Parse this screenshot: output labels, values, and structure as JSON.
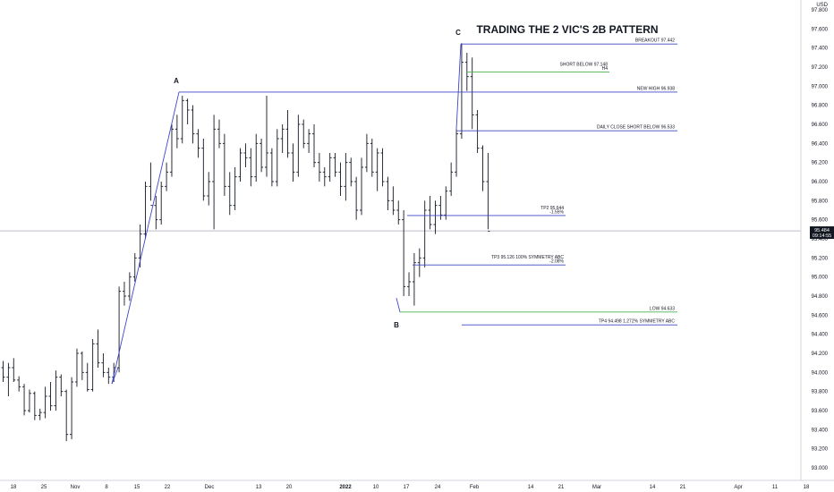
{
  "chart_data": {
    "type": "ohlc-bar",
    "title": "TRADING THE 2 VIC'S 2B PATTERN",
    "currency": "USD",
    "ylim": [
      93.0,
      97.8
    ],
    "y_ticks": [
      "93.000",
      "93.200",
      "93.400",
      "93.600",
      "93.800",
      "94.000",
      "94.200",
      "94.400",
      "94.600",
      "94.800",
      "95.000",
      "95.200",
      "95.400",
      "95.600",
      "95.800",
      "96.000",
      "96.200",
      "96.400",
      "96.600",
      "96.800",
      "97.000",
      "97.200",
      "97.400",
      "97.600",
      "97.800"
    ],
    "x_ticks": [
      "18",
      "25",
      "Nov",
      "8",
      "15",
      "22",
      "Dec",
      "13",
      "20",
      "2022",
      "10",
      "17",
      "24",
      "Feb",
      "14",
      "21",
      "Mar",
      "14",
      "21",
      "Apr",
      "11",
      "18"
    ],
    "current_price": {
      "value": 95.484,
      "label": "95.484",
      "time": "09:14:55"
    },
    "pattern_points": [
      {
        "label": "A",
        "value": 96.938
      },
      {
        "label": "B",
        "value": 94.633
      },
      {
        "label": "C",
        "value": 97.442
      }
    ],
    "levels": [
      {
        "name": "BREAKOUT",
        "text": "BREAKOUT 97.442",
        "sub": "",
        "value": 97.442,
        "color": "#3f46c8"
      },
      {
        "name": "SHORT BELOW",
        "text": "SHORT BELOW 97.148",
        "sub": "H4",
        "value": 97.148,
        "color": "#4caf50"
      },
      {
        "name": "NEW HIGH",
        "text": "NEW HIGH 96.938",
        "sub": "",
        "value": 96.938,
        "color": "#3f46c8"
      },
      {
        "name": "DAILY CLOSE SHORT BELOW",
        "text": "DAILY CLOSE SHORT BELOW  96.533",
        "sub": "",
        "value": 96.533,
        "color": "#3f46c8"
      },
      {
        "name": "TP2",
        "text": "TP2 95.644",
        "sub": "-1.55%",
        "value": 95.644,
        "color": "#3f46c8"
      },
      {
        "name": "TP3",
        "text": "TP3  95.126 100% SYMMETRY ABC",
        "sub": "-2.08%",
        "value": 95.126,
        "color": "#3f46c8"
      },
      {
        "name": "LOW",
        "text": "LOW  94.633",
        "sub": "",
        "value": 94.633,
        "color": "#4caf50"
      },
      {
        "name": "TP4",
        "text": "TP4  94.498 1.272% SYMMETRY ABC",
        "sub": "",
        "value": 94.498,
        "color": "#3f46c8"
      }
    ],
    "bars": [
      [
        94.05,
        94.12,
        93.9,
        93.95
      ],
      [
        93.95,
        94.1,
        93.75,
        94.05
      ],
      [
        94.05,
        94.15,
        93.9,
        93.92
      ],
      [
        93.92,
        93.96,
        93.8,
        93.85
      ],
      [
        93.85,
        93.88,
        93.55,
        93.6
      ],
      [
        93.6,
        93.82,
        93.58,
        93.78
      ],
      [
        93.78,
        93.8,
        93.5,
        93.55
      ],
      [
        93.55,
        93.62,
        93.5,
        93.58
      ],
      [
        93.58,
        93.85,
        93.52,
        93.75
      ],
      [
        93.75,
        93.9,
        93.6,
        93.65
      ],
      [
        93.65,
        94.02,
        93.6,
        93.95
      ],
      [
        93.95,
        93.98,
        93.75,
        93.8
      ],
      [
        93.8,
        93.82,
        93.28,
        93.35
      ],
      [
        93.35,
        93.95,
        93.3,
        93.9
      ],
      [
        93.9,
        94.25,
        93.85,
        94.2
      ],
      [
        94.2,
        94.22,
        93.92,
        94.0
      ],
      [
        94.0,
        94.1,
        93.8,
        93.82
      ],
      [
        93.82,
        94.35,
        93.8,
        94.3
      ],
      [
        94.3,
        94.45,
        94.05,
        94.1
      ],
      [
        94.1,
        94.2,
        93.95,
        94.0
      ],
      [
        94.0,
        94.05,
        93.88,
        93.95
      ],
      [
        93.95,
        94.1,
        93.9,
        94.05
      ],
      [
        94.05,
        94.9,
        94.0,
        94.85
      ],
      [
        94.85,
        94.95,
        94.7,
        94.8
      ],
      [
        94.8,
        95.05,
        94.75,
        95.0
      ],
      [
        95.0,
        95.25,
        94.95,
        95.2
      ],
      [
        95.2,
        95.55,
        95.1,
        95.45
      ],
      [
        95.45,
        96.0,
        95.4,
        95.95
      ],
      [
        95.95,
        96.2,
        95.8,
        95.75
      ],
      [
        95.75,
        95.85,
        95.5,
        95.6
      ],
      [
        95.6,
        96.0,
        95.55,
        95.95
      ],
      [
        95.95,
        96.2,
        95.9,
        96.1
      ],
      [
        96.1,
        96.6,
        96.05,
        96.55
      ],
      [
        96.55,
        96.7,
        96.35,
        96.45
      ],
      [
        96.45,
        96.9,
        96.4,
        96.85
      ],
      [
        96.85,
        96.87,
        96.6,
        96.75
      ],
      [
        96.75,
        96.8,
        96.4,
        96.5
      ],
      [
        96.5,
        96.55,
        96.25,
        96.35
      ],
      [
        96.35,
        96.45,
        95.8,
        95.85
      ],
      [
        95.85,
        96.1,
        95.75,
        96.0
      ],
      [
        96.0,
        96.7,
        95.5,
        96.55
      ],
      [
        96.55,
        96.65,
        96.35,
        96.4
      ],
      [
        96.4,
        96.5,
        95.85,
        95.95
      ],
      [
        95.95,
        96.1,
        95.65,
        95.75
      ],
      [
        95.75,
        96.15,
        95.7,
        96.05
      ],
      [
        96.05,
        96.35,
        96.0,
        96.3
      ],
      [
        96.3,
        96.4,
        96.15,
        96.25
      ],
      [
        96.25,
        96.35,
        95.95,
        96.05
      ],
      [
        96.05,
        96.5,
        96.0,
        96.4
      ],
      [
        96.4,
        96.45,
        96.1,
        96.15
      ],
      [
        96.15,
        96.9,
        96.05,
        96.3
      ],
      [
        96.3,
        96.35,
        95.95,
        96.0
      ],
      [
        96.0,
        96.55,
        95.95,
        96.45
      ],
      [
        96.45,
        96.6,
        96.3,
        96.55
      ],
      [
        96.55,
        96.75,
        96.25,
        96.3
      ],
      [
        96.3,
        96.4,
        96.0,
        96.1
      ],
      [
        96.1,
        96.7,
        96.05,
        96.6
      ],
      [
        96.6,
        96.65,
        96.35,
        96.4
      ],
      [
        96.4,
        96.55,
        96.3,
        96.5
      ],
      [
        96.5,
        96.6,
        96.15,
        96.2
      ],
      [
        96.2,
        96.3,
        96.0,
        96.1
      ],
      [
        96.1,
        96.15,
        95.95,
        96.05
      ],
      [
        96.05,
        96.3,
        96.0,
        96.25
      ],
      [
        96.25,
        96.3,
        96.05,
        96.1
      ],
      [
        96.1,
        96.2,
        95.85,
        95.95
      ],
      [
        95.95,
        96.3,
        95.8,
        96.2
      ],
      [
        96.2,
        96.25,
        95.95,
        96.0
      ],
      [
        96.0,
        96.05,
        95.6,
        95.7
      ],
      [
        95.7,
        96.25,
        95.65,
        96.15
      ],
      [
        96.15,
        96.5,
        96.1,
        96.4
      ],
      [
        96.4,
        96.45,
        96.05,
        96.1
      ],
      [
        96.1,
        96.35,
        95.9,
        96.3
      ],
      [
        96.3,
        96.35,
        95.95,
        96.0
      ],
      [
        96.0,
        96.05,
        95.7,
        95.8
      ],
      [
        95.8,
        95.95,
        95.65,
        95.7
      ],
      [
        95.7,
        95.8,
        95.55,
        95.6
      ],
      [
        95.6,
        95.7,
        94.8,
        94.9
      ],
      [
        94.9,
        95.05,
        94.8,
        94.95
      ],
      [
        94.95,
        95.25,
        94.7,
        95.15
      ],
      [
        95.15,
        95.3,
        95.0,
        95.2
      ],
      [
        95.2,
        95.8,
        95.1,
        95.7
      ],
      [
        95.7,
        95.85,
        95.5,
        95.55
      ],
      [
        95.55,
        95.8,
        95.45,
        95.75
      ],
      [
        95.75,
        95.85,
        95.6,
        95.65
      ],
      [
        95.65,
        95.95,
        95.6,
        95.9
      ],
      [
        95.9,
        96.2,
        95.85,
        96.1
      ],
      [
        96.1,
        96.55,
        96.05,
        96.5
      ],
      [
        96.5,
        97.45,
        96.45,
        97.25
      ],
      [
        97.25,
        97.35,
        96.95,
        97.1
      ],
      [
        97.1,
        97.3,
        96.55,
        96.7
      ],
      [
        96.7,
        96.75,
        96.3,
        96.35
      ],
      [
        96.35,
        96.38,
        95.9,
        96.0
      ],
      [
        96.0,
        96.3,
        95.5,
        95.48
      ]
    ]
  }
}
